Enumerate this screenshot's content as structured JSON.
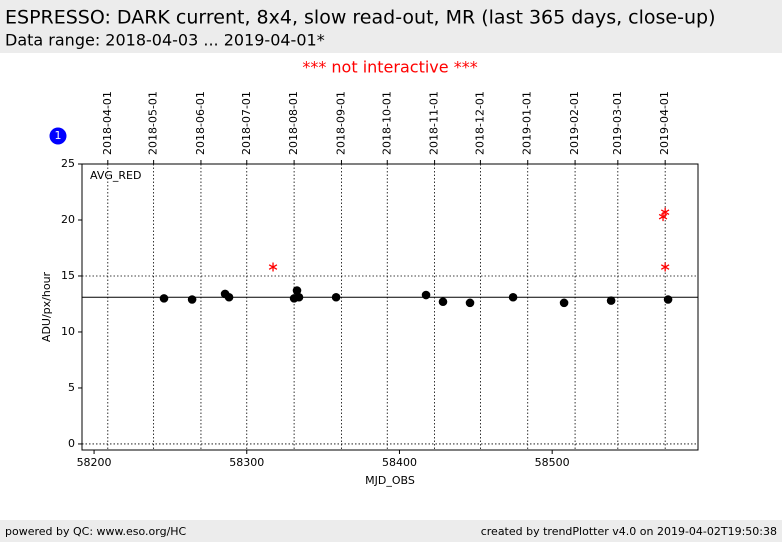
{
  "chart_data": {
    "type": "scatter",
    "title": "ESPRESSO: DARK current, 8x4, slow read-out, MR (last 365 days, close-up)",
    "subtitle": "Data range: 2018-04-03 ... 2019-04-01*",
    "note": "*** not interactive ***",
    "badge": "1",
    "annotation": "AVG_RED",
    "x_label": "MJD_OBS",
    "y_label": "ADU/px/hour",
    "footer_left": "powered by QC: www.eso.org/HC",
    "footer_right": "created by trendPlotter v4.0 on 2019-04-02T19:50:38",
    "xlim": [
      58192.1,
      58595.5
    ],
    "ylim": [
      -0.54,
      25
    ],
    "xticks": [
      58200,
      58300,
      58400,
      58500
    ],
    "yticks": [
      0,
      5,
      10,
      15,
      20,
      25
    ],
    "top_ticks": [
      {
        "value": 58209,
        "label": "2018-04-01"
      },
      {
        "value": 58239,
        "label": "2018-05-01"
      },
      {
        "value": 58270,
        "label": "2018-06-01"
      },
      {
        "value": 58300,
        "label": "2018-07-01"
      },
      {
        "value": 58331,
        "label": "2018-08-01"
      },
      {
        "value": 58362,
        "label": "2018-09-01"
      },
      {
        "value": 58392,
        "label": "2018-10-01"
      },
      {
        "value": 58423,
        "label": "2018-11-01"
      },
      {
        "value": 58453,
        "label": "2018-12-01"
      },
      {
        "value": 58484,
        "label": "2019-01-01"
      },
      {
        "value": 58515,
        "label": "2019-02-01"
      },
      {
        "value": 58543,
        "label": "2019-03-01"
      },
      {
        "value": 58574,
        "label": "2019-04-01"
      }
    ],
    "hlines": [
      {
        "value": 13.1,
        "style": "solid"
      },
      {
        "value": 15,
        "style": "dotted"
      },
      {
        "value": 0,
        "style": "dotted"
      }
    ],
    "series": [
      {
        "color": "#000000",
        "marker": "circle",
        "x": [
          58245.8,
          58264.2,
          58285.8,
          58288.4,
          58331.0,
          58332.9,
          58334.2,
          58358.5,
          58417.4,
          58428.5,
          58446.2,
          58474.4,
          58507.8,
          58538.6,
          58575.9
        ],
        "values": [
          13.0,
          12.9,
          13.4,
          13.1,
          13.0,
          13.7,
          13.1,
          13.1,
          13.3,
          12.7,
          12.6,
          13.1,
          12.6,
          12.8,
          12.9
        ]
      },
      {
        "color": "#ff0000",
        "marker": "star",
        "x": [
          58317.2,
          58572.6,
          58574.0,
          58574.0
        ],
        "values": [
          15.8,
          20.3,
          20.7,
          15.8
        ]
      }
    ]
  }
}
